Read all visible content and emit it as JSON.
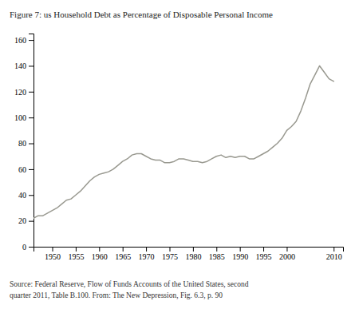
{
  "chart_data": {
    "type": "line",
    "title": "Figure 7: us Household Debt as Percentage of Disposable Personal Income",
    "annotations": [
      "Source: Federal Reserve, Flow of Funds Accounts of the United States, second",
      "quarter 2011, Table B.100. From: The New Depression, Fig. 6.3, p. 90"
    ],
    "x": [
      1946,
      1947,
      1948,
      1949,
      1950,
      1951,
      1952,
      1953,
      1954,
      1955,
      1956,
      1957,
      1958,
      1959,
      1960,
      1961,
      1962,
      1963,
      1964,
      1965,
      1966,
      1967,
      1968,
      1969,
      1970,
      1971,
      1972,
      1973,
      1974,
      1975,
      1976,
      1977,
      1978,
      1979,
      1980,
      1981,
      1982,
      1983,
      1984,
      1985,
      1986,
      1987,
      1988,
      1989,
      1990,
      1991,
      1992,
      1993,
      1994,
      1995,
      1996,
      1997,
      1998,
      1999,
      2000,
      2001,
      2002,
      2003,
      2004,
      2005,
      2006,
      2007,
      2008,
      2009,
      2010
    ],
    "values": [
      22,
      24,
      24,
      26,
      28,
      30,
      33,
      36,
      37,
      40,
      43,
      47,
      51,
      54,
      56,
      57,
      58,
      60,
      63,
      66,
      68,
      71,
      72,
      72,
      70,
      68,
      67,
      67,
      65,
      65,
      66,
      68,
      68,
      67,
      66,
      66,
      65,
      66,
      68,
      70,
      71,
      69,
      70,
      69,
      70,
      70,
      68,
      68,
      70,
      72,
      74,
      77,
      80,
      84,
      90,
      93,
      97,
      105,
      115,
      126,
      133,
      140,
      135,
      130,
      128
    ],
    "color": "#999990",
    "xlim": [
      1946,
      2012
    ],
    "ylim": [
      0,
      165
    ],
    "xticks": [
      1950,
      1955,
      1960,
      1965,
      1970,
      1975,
      1980,
      1985,
      1990,
      1995,
      2000,
      2010
    ],
    "yticks": [
      0,
      20,
      40,
      60,
      80,
      100,
      120,
      140,
      160
    ],
    "grid": false
  }
}
